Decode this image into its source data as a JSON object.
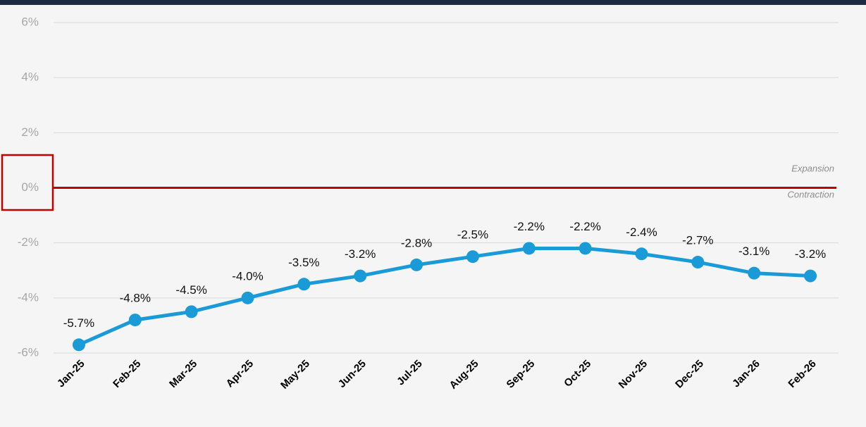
{
  "chart_data": {
    "type": "line",
    "categories": [
      "Jan-25",
      "Feb-25",
      "Mar-25",
      "Apr-25",
      "May-25",
      "Jun-25",
      "Jul-25",
      "Aug-25",
      "Sep-25",
      "Oct-25",
      "Nov-25",
      "Dec-25",
      "Jan-26",
      "Feb-26"
    ],
    "values": [
      -5.7,
      -4.8,
      -4.5,
      -4.0,
      -3.5,
      -3.2,
      -2.8,
      -2.5,
      -2.2,
      -2.2,
      -2.4,
      -2.7,
      -3.1,
      -3.2
    ],
    "value_labels": [
      "-5.7%",
      "-4.8%",
      "-4.5%",
      "-4.0%",
      "-3.5%",
      "-3.2%",
      "-2.8%",
      "-2.5%",
      "-2.2%",
      "-2.2%",
      "-2.4%",
      "-2.7%",
      "-3.1%",
      "-3.2%"
    ],
    "color": "#1a9bd7",
    "ylim": [
      -6,
      6
    ],
    "yticks": [
      {
        "value": -6,
        "label": "-6%"
      },
      {
        "value": -4,
        "label": "-4%"
      },
      {
        "value": -2,
        "label": "-2%"
      },
      {
        "value": 0,
        "label": "0%"
      },
      {
        "value": 2,
        "label": "2%"
      },
      {
        "value": 4,
        "label": "4%"
      },
      {
        "value": 6,
        "label": "6%"
      }
    ],
    "grid": true,
    "zero_line_color": "#c00000",
    "annotations": [
      "Expansion",
      "Contraction"
    ]
  }
}
